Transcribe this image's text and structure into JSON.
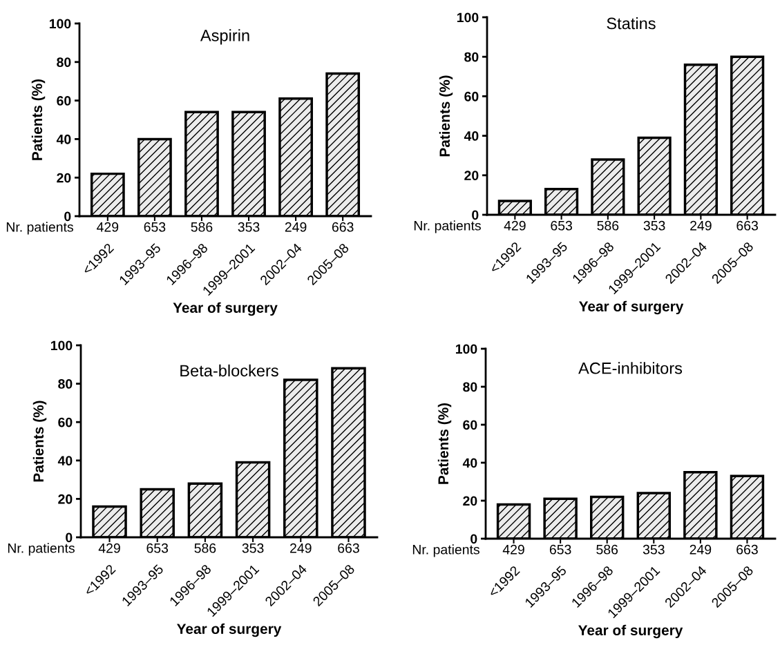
{
  "chart_data": [
    {
      "type": "bar",
      "title": "Aspirin",
      "xlabel": "Year of surgery",
      "ylabel": "Patients (%)",
      "categories": [
        "<1992",
        "1993–95",
        "1996–98",
        "1999–2001",
        "2002–04",
        "2005–08"
      ],
      "values": [
        22,
        40,
        54,
        54,
        61,
        74
      ],
      "ylim": [
        0,
        100
      ],
      "yticks": [
        0,
        20,
        40,
        60,
        80,
        100
      ],
      "annotations": [
        "Nr. patients",
        "429",
        "653",
        "586",
        "353",
        "249",
        "663"
      ]
    },
    {
      "type": "bar",
      "title": "Statins",
      "xlabel": "Year of surgery",
      "ylabel": "Patients (%)",
      "categories": [
        "<1992",
        "1993–95",
        "1996–98",
        "1999–2001",
        "2002–04",
        "2005–08"
      ],
      "values": [
        7,
        13,
        28,
        39,
        76,
        80
      ],
      "ylim": [
        0,
        100
      ],
      "yticks": [
        0,
        20,
        40,
        60,
        80,
        100
      ],
      "annotations": [
        "Nr. patients",
        "429",
        "653",
        "586",
        "353",
        "249",
        "663"
      ]
    },
    {
      "type": "bar",
      "title": "Beta-blockers",
      "xlabel": "Year of surgery",
      "ylabel": "Patients (%)",
      "categories": [
        "<1992",
        "1993–95",
        "1996–98",
        "1999–2001",
        "2002–04",
        "2005–08"
      ],
      "values": [
        16,
        25,
        28,
        39,
        82,
        88
      ],
      "ylim": [
        0,
        100
      ],
      "yticks": [
        0,
        20,
        40,
        60,
        80,
        100
      ],
      "annotations": [
        "Nr. patients",
        "429",
        "653",
        "586",
        "353",
        "249",
        "663"
      ]
    },
    {
      "type": "bar",
      "title": "ACE-inhibitors",
      "xlabel": "Year of surgery",
      "ylabel": "Patients (%)",
      "categories": [
        "<1992",
        "1993–95",
        "1996–98",
        "1999–2001",
        "2002–04",
        "2005–08"
      ],
      "values": [
        18,
        21,
        22,
        24,
        35,
        33
      ],
      "ylim": [
        0,
        100
      ],
      "yticks": [
        0,
        20,
        40,
        60,
        80,
        100
      ],
      "annotations": [
        "Nr. patients",
        "429",
        "653",
        "586",
        "353",
        "249",
        "663"
      ]
    }
  ]
}
